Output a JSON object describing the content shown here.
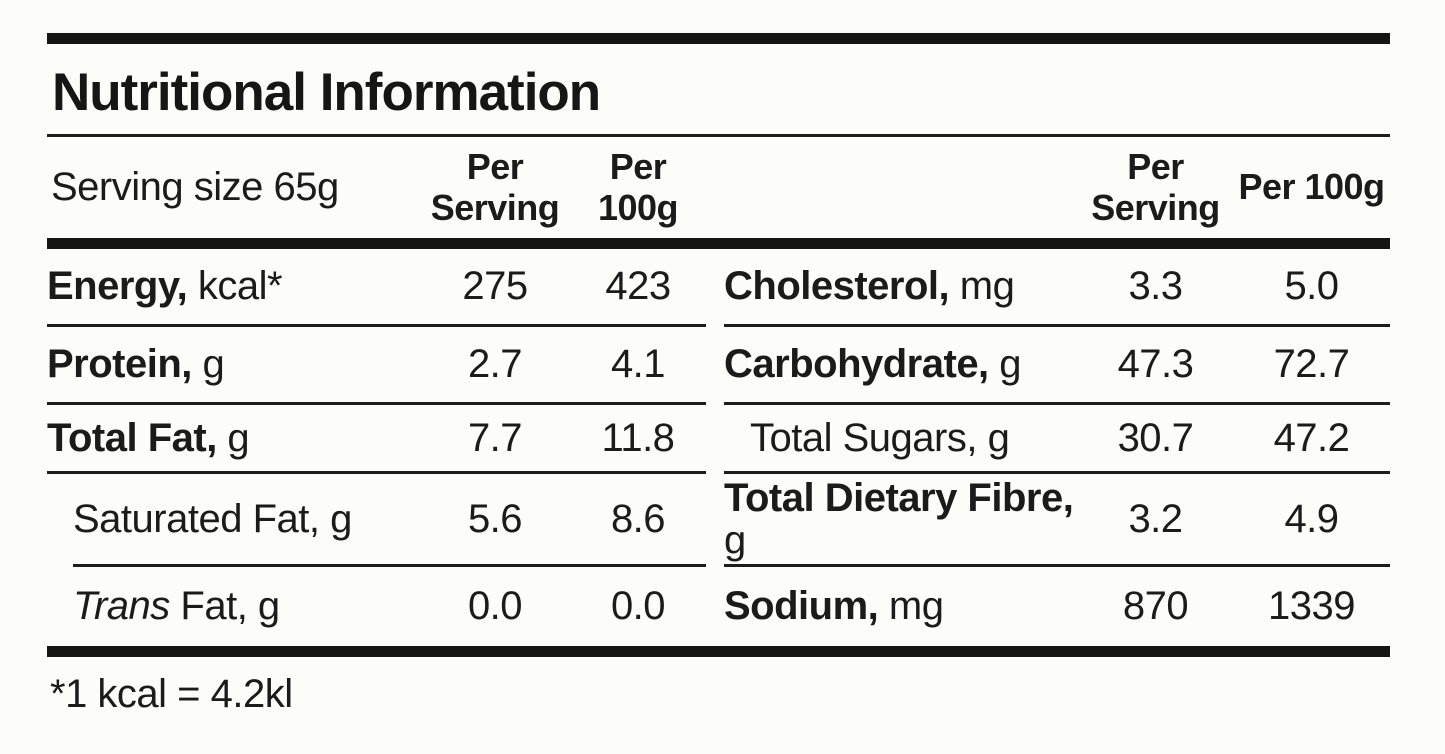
{
  "title": "Nutritional Information",
  "table": {
    "serving_size": "Serving size 65g",
    "columns": {
      "per_serving": "Per Serving",
      "per_100g": "Per 100g"
    },
    "left_rows": [
      {
        "bold": "Energy,",
        "rest": " kcal*",
        "per_serving": "275",
        "per_100g": "423"
      },
      {
        "bold": "Protein,",
        "rest": " g",
        "per_serving": "2.7",
        "per_100g": "4.1"
      },
      {
        "bold": "Total Fat,",
        "rest": " g",
        "per_serving": "7.7",
        "per_100g": "11.8"
      },
      {
        "rest": "Saturated Fat, g",
        "per_serving": "5.6",
        "per_100g": "8.6"
      },
      {
        "italic": "Trans",
        "rest": " Fat, g",
        "per_serving": "0.0",
        "per_100g": "0.0"
      }
    ],
    "right_rows": [
      {
        "bold": "Cholesterol,",
        "rest": " mg",
        "per_serving": "3.3",
        "per_100g": "5.0"
      },
      {
        "bold": "Carbohydrate,",
        "rest": " g",
        "per_serving": "47.3",
        "per_100g": "72.7"
      },
      {
        "rest": "Total Sugars, g",
        "per_serving": "30.7",
        "per_100g": "47.2"
      },
      {
        "bold": "Total Dietary Fibre,",
        "rest": " g",
        "per_serving": "3.2",
        "per_100g": "4.9"
      },
      {
        "bold": "Sodium,",
        "rest": " mg",
        "per_serving": "870",
        "per_100g": "1339"
      }
    ],
    "footnote": "*1 kcal = 4.2kl"
  }
}
